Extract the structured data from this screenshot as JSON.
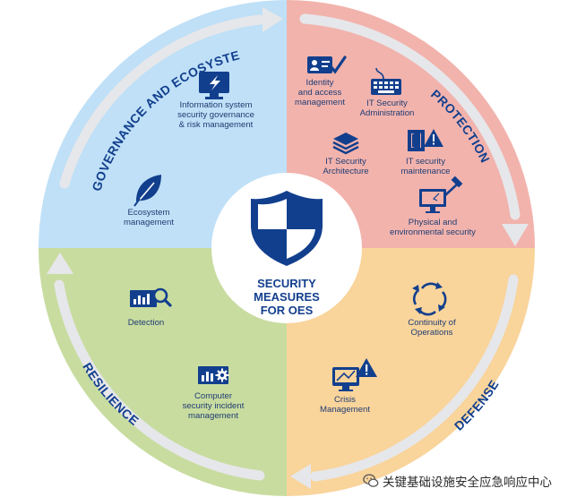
{
  "center": {
    "lines": [
      "SECURITY",
      "MEASURES",
      "FOR OES"
    ]
  },
  "quadrants": [
    {
      "name": "GOVERNANCE AND ECOSYSTEM",
      "color": "#bfe0f7"
    },
    {
      "name": "PROTECTION",
      "color": "#f2b3ad"
    },
    {
      "name": "DEFENSE",
      "color": "#f9d49b"
    },
    {
      "name": "RESILIENCE",
      "color": "#c8dca0"
    }
  ],
  "items": {
    "info_sys": [
      "Information system",
      "security governance",
      "& risk management"
    ],
    "ecosystem": [
      "Ecosystem",
      "management"
    ],
    "identity": [
      "Identity",
      "and access",
      "management"
    ],
    "it_admin": [
      "IT Security",
      "Administration"
    ],
    "it_arch": [
      "IT Security",
      "Architecture"
    ],
    "it_maint": [
      "IT security",
      "maintenance"
    ],
    "physical": [
      "Physical and",
      "environmental security"
    ],
    "continuity": [
      "Continuity of",
      "Operations"
    ],
    "crisis": [
      "Crisis",
      "Management"
    ],
    "detection": [
      "Detection"
    ],
    "incident": [
      "Computer",
      "security incident",
      "management"
    ]
  },
  "colors": {
    "icon": "#123f8d",
    "arrow": "#e6e7ea",
    "ring": "#ffffff"
  },
  "watermark": {
    "text": "关键基础设施安全应急响应中心",
    "icon": "wechat-icon"
  }
}
